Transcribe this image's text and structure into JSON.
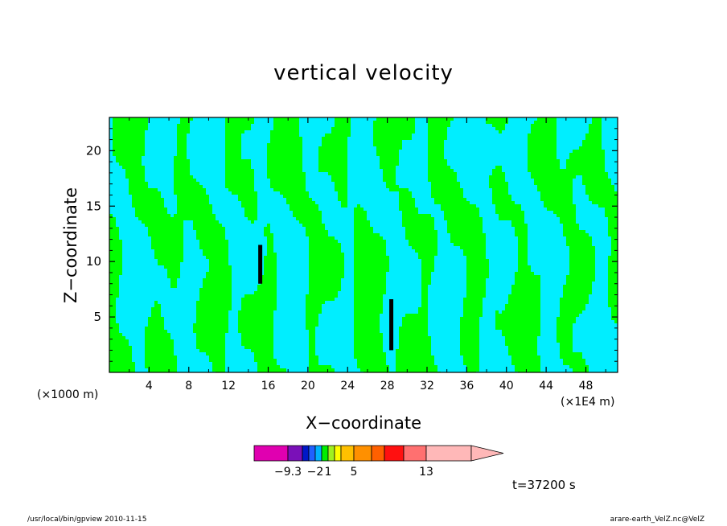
{
  "chart_data": {
    "type": "heatmap",
    "title": "vertical velocity",
    "xlabel": "X−coordinate",
    "ylabel": "Z−coordinate",
    "x_unit_left": "(×1000 m)",
    "x_unit_right": "(×1E4 m)",
    "x_ticks": [
      "4",
      "8",
      "12",
      "16",
      "20",
      "24",
      "28",
      "32",
      "36",
      "40",
      "44",
      "48"
    ],
    "x_tick_values": [
      4,
      8,
      12,
      16,
      20,
      24,
      28,
      32,
      36,
      40,
      44,
      48
    ],
    "y_ticks": [
      "5",
      "10",
      "15",
      "20"
    ],
    "y_tick_values": [
      5,
      10,
      15,
      20
    ],
    "xlim": [
      0,
      51.2
    ],
    "ylim": [
      0,
      23
    ],
    "time_label": "t=37200 s",
    "colorbar": {
      "labels": [
        "−9.3",
        "−2",
        "1",
        "5",
        "13"
      ],
      "label_values": [
        -9.3,
        -2,
        1,
        5,
        13
      ],
      "colors": [
        "#e000b0",
        "#7a10b8",
        "#0018c8",
        "#2060ff",
        "#00b0ff",
        "#00ee00",
        "#a0f020",
        "#ffff00",
        "#ffc000",
        "#ff9000",
        "#ff6000",
        "#ff1010",
        "#ff7070",
        "#ffb8b8"
      ],
      "extend": "max"
    },
    "dominant_colors": {
      "negative": "#00eeff",
      "positive": "#00ff00",
      "strong_negative": "#000000"
    }
  },
  "footer": {
    "left": "/usr/local/bin/gpview  2010-11-15",
    "right": "arare-earth_VelZ.nc@VelZ"
  }
}
